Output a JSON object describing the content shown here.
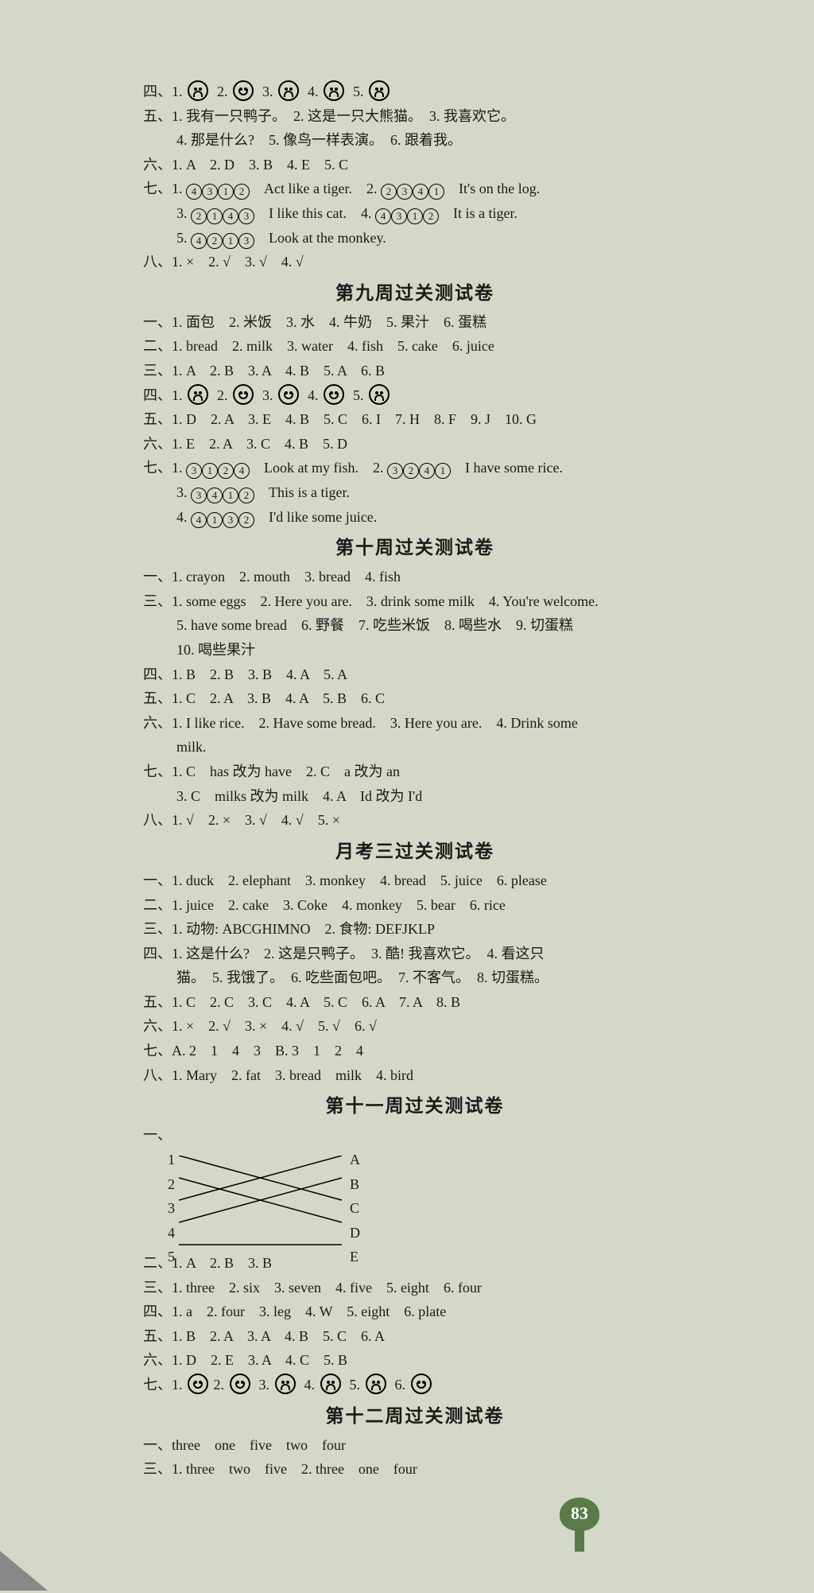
{
  "sec_pre": {
    "q4": {
      "label": "四、",
      "items": [
        "1.",
        "2.",
        "3.",
        "4.",
        "5."
      ],
      "faces": [
        "sad",
        "happy",
        "sad",
        "sad",
        "sad"
      ]
    },
    "q5": {
      "label": "五、",
      "l1": "1. 我有一只鸭子。　2. 这是一只大熊猫。　3. 我喜欢它。",
      "l2": "4. 那是什么?　5. 像鸟一样表演。　6. 跟着我。"
    },
    "q6": {
      "label": "六、",
      "text": "1. A　2. D　3. B　4. E　5. C"
    },
    "q7": {
      "label": "七、",
      "l1_pre": "1. ",
      "l1_seq": [
        "4",
        "3",
        "1",
        "2"
      ],
      "l1_txt": "　Act like a tiger.　2. ",
      "l1_seq2": [
        "2",
        "3",
        "4",
        "1"
      ],
      "l1_txt2": "　It's on the log.",
      "l2_pre": "3. ",
      "l2_seq": [
        "2",
        "1",
        "4",
        "3"
      ],
      "l2_txt": "　I like this cat.　4. ",
      "l2_seq2": [
        "4",
        "3",
        "1",
        "2"
      ],
      "l2_txt2": "　It is a tiger.",
      "l3_pre": "5. ",
      "l3_seq": [
        "4",
        "2",
        "1",
        "3"
      ],
      "l3_txt": "　Look at the monkey."
    },
    "q8": {
      "label": "八、",
      "text": "1. ×　2. √　3. √　4. √"
    }
  },
  "h9": "第九周过关测试卷",
  "sec9": {
    "q1": {
      "label": "一、",
      "text": "1. 面包　2. 米饭　3. 水　4. 牛奶　5. 果汁　6. 蛋糕"
    },
    "q2": {
      "label": "二、",
      "text": "1. bread　2. milk　3. water　4. fish　5. cake　6. juice"
    },
    "q3": {
      "label": "三、",
      "text": "1. A　2. B　3. A　4. B　5. A　6. B"
    },
    "q4": {
      "label": "四、",
      "items": [
        "1.",
        "2.",
        "3.",
        "4.",
        "5."
      ],
      "faces": [
        "sad",
        "happy",
        "happy",
        "happy",
        "sad"
      ]
    },
    "q5": {
      "label": "五、",
      "text": "1. D　2. A　3. E　4. B　5. C　6. I　7. H　8. F　9. J　10. G"
    },
    "q6": {
      "label": "六、",
      "text": "1. E　2. A　3. C　4. B　5. D"
    },
    "q7": {
      "label": "七、",
      "l1_pre": "1. ",
      "l1_seq": [
        "3",
        "1",
        "2",
        "4"
      ],
      "l1_txt": "　Look at my fish.　2. ",
      "l1_seq2": [
        "3",
        "2",
        "4",
        "1"
      ],
      "l1_txt2": "　I have some rice.",
      "l2_pre": "3. ",
      "l2_seq": [
        "3",
        "4",
        "1",
        "2"
      ],
      "l2_txt": "　This is a tiger.",
      "l3_pre": "4. ",
      "l3_seq": [
        "4",
        "1",
        "3",
        "2"
      ],
      "l3_txt": "　I'd like some juice."
    }
  },
  "h10": "第十周过关测试卷",
  "sec10": {
    "q1": {
      "label": "一、",
      "text": "1. crayon　2. mouth　3. bread　4. fish"
    },
    "q3": {
      "label": "三、",
      "l1": "1. some eggs　2. Here you are.　3. drink some milk　4. You're welcome.",
      "l2": "5. have some bread　6. 野餐　7. 吃些米饭　8. 喝些水　9. 切蛋糕",
      "l3": "10. 喝些果汁"
    },
    "q4": {
      "label": "四、",
      "text": "1. B　2. B　3. B　4. A　5. A"
    },
    "q5": {
      "label": "五、",
      "text": "1. C　2. A　3. B　4. A　5. B　6. C"
    },
    "q6": {
      "label": "六、",
      "l1": "1. I like rice.　2. Have some bread.　3. Here you are.　4. Drink some",
      "l2": "milk."
    },
    "q7": {
      "label": "七、",
      "l1": "1. C　has 改为 have　2. C　a 改为 an",
      "l2": "3. C　milks 改为 milk　4. A　Id 改为 I'd"
    },
    "q8": {
      "label": "八、",
      "text": "1. √　2. ×　3. √　4. √　5. ×"
    }
  },
  "hM3": "月考三过关测试卷",
  "secM3": {
    "q1": {
      "label": "一、",
      "text": "1. duck　2. elephant　3. monkey　4. bread　5. juice　6. please"
    },
    "q2": {
      "label": "二、",
      "text": "1. juice　2. cake　3. Coke　4. monkey　5. bear　6. rice"
    },
    "q3": {
      "label": "三、",
      "text": "1. 动物: ABCGHIMNO　2. 食物: DEFJKLP"
    },
    "q4": {
      "label": "四、",
      "l1": "1. 这是什么?　2. 这是只鸭子。　3. 酷! 我喜欢它。　4. 看这只",
      "l2": "猫。　5. 我饿了。　6. 吃些面包吧。　7. 不客气。　8. 切蛋糕。"
    },
    "q5": {
      "label": "五、",
      "text": "1. C　2. C　3. C　4. A　5. C　6. A　7. A　8. B"
    },
    "q6": {
      "label": "六、",
      "text": "1. ×　2. √　3. ×　4. √　5. √　6. √"
    },
    "q7": {
      "label": "七、",
      "text": "A. 2　1　4　3　B. 3　1　2　4"
    },
    "q8": {
      "label": "八、",
      "text": "1. Mary　2. fat　3. bread　milk　4. bird"
    }
  },
  "h11": "第十一周过关测试卷",
  "sec11": {
    "q1": {
      "label": "一、"
    },
    "matching": {
      "left": [
        "1",
        "2",
        "3",
        "4",
        "5"
      ],
      "right": [
        "A",
        "B",
        "C",
        "D",
        "E"
      ],
      "edges": [
        [
          0,
          2
        ],
        [
          1,
          3
        ],
        [
          2,
          0
        ],
        [
          3,
          1
        ],
        [
          4,
          4
        ]
      ]
    },
    "q2": {
      "label": "二、",
      "text": "1. A　2. B　3. B"
    },
    "q3": {
      "label": "三、",
      "text": "1. three　2. six　3. seven　4. five　5. eight　6. four"
    },
    "q4": {
      "label": "四、",
      "text": "1. a　2. four　3. leg　4. W　5. eight　6. plate"
    },
    "q5": {
      "label": "五、",
      "text": "1. B　2. A　3. A　4. B　5. C　6. A"
    },
    "q6": {
      "label": "六、",
      "text": "1. D　2. E　3. A　4. C　5. B"
    },
    "q7": {
      "label": "七、",
      "items": [
        "1.",
        "2.",
        "3.",
        "4.",
        "5.",
        "6."
      ],
      "faces": [
        "happy",
        "happy",
        "sad",
        "sad",
        "sad",
        "happy"
      ]
    }
  },
  "h12": "第十二周过关测试卷",
  "sec12": {
    "q1": {
      "label": "一、",
      "text": "three　one　five　two　four"
    },
    "q3": {
      "label": "三、",
      "text": "1. three　two　five　2. three　one　four"
    }
  },
  "page_number": "83"
}
